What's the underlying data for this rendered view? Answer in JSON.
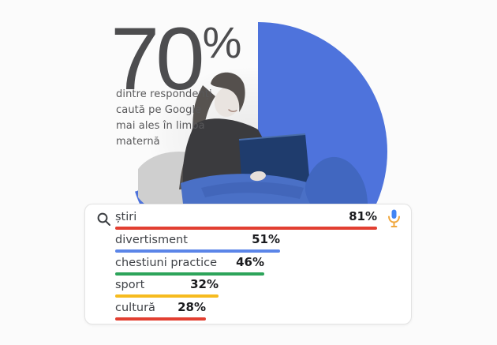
{
  "stat": {
    "value": "70",
    "percent_sign": "%",
    "description_lines": [
      "dintre respondenți",
      "caută pe Google",
      "mai ales în limba",
      "maternă"
    ]
  },
  "pie": {
    "percent": 70,
    "color": "#4e73dc"
  },
  "illustration": {
    "name": "girl-with-laptop-photo"
  },
  "search_card": {
    "search_icon": "magnifier-icon",
    "mic_icon": "google-voice-mic-icon",
    "mic_colors": {
      "body": "#4285f4",
      "stand": "#f0a73c"
    },
    "rows": [
      {
        "label": "știri",
        "value": "81%",
        "pct": 81,
        "color": "#e23f31"
      },
      {
        "label": "divertisment",
        "value": "51%",
        "pct": 51,
        "color": "#5b85e8"
      },
      {
        "label": "chestiuni practice",
        "value": "46%",
        "pct": 46,
        "color": "#2da45a"
      },
      {
        "label": "sport",
        "value": "32%",
        "pct": 32,
        "color": "#f6bb1f"
      },
      {
        "label": "cultură",
        "value": "28%",
        "pct": 28,
        "color": "#e23f31"
      }
    ]
  },
  "chart_data": [
    {
      "type": "pie",
      "title": "70% dintre respondenți caută pe Google mai ales în limba maternă",
      "values": [
        70,
        30
      ],
      "labels": [
        "70%",
        ""
      ],
      "colors": [
        "#4e73dc",
        "transparent"
      ],
      "start_angle_deg": 0,
      "direction": "clockwise"
    },
    {
      "type": "bar",
      "orientation": "horizontal",
      "categories": [
        "știri",
        "divertisment",
        "chestiuni practice",
        "sport",
        "cultură"
      ],
      "values": [
        81,
        51,
        46,
        32,
        28
      ],
      "bar_colors": [
        "#e23f31",
        "#5b85e8",
        "#2da45a",
        "#f6bb1f",
        "#e23f31"
      ],
      "value_suffix": "%",
      "xlim": [
        0,
        100
      ],
      "legend": false,
      "grid": false
    }
  ]
}
